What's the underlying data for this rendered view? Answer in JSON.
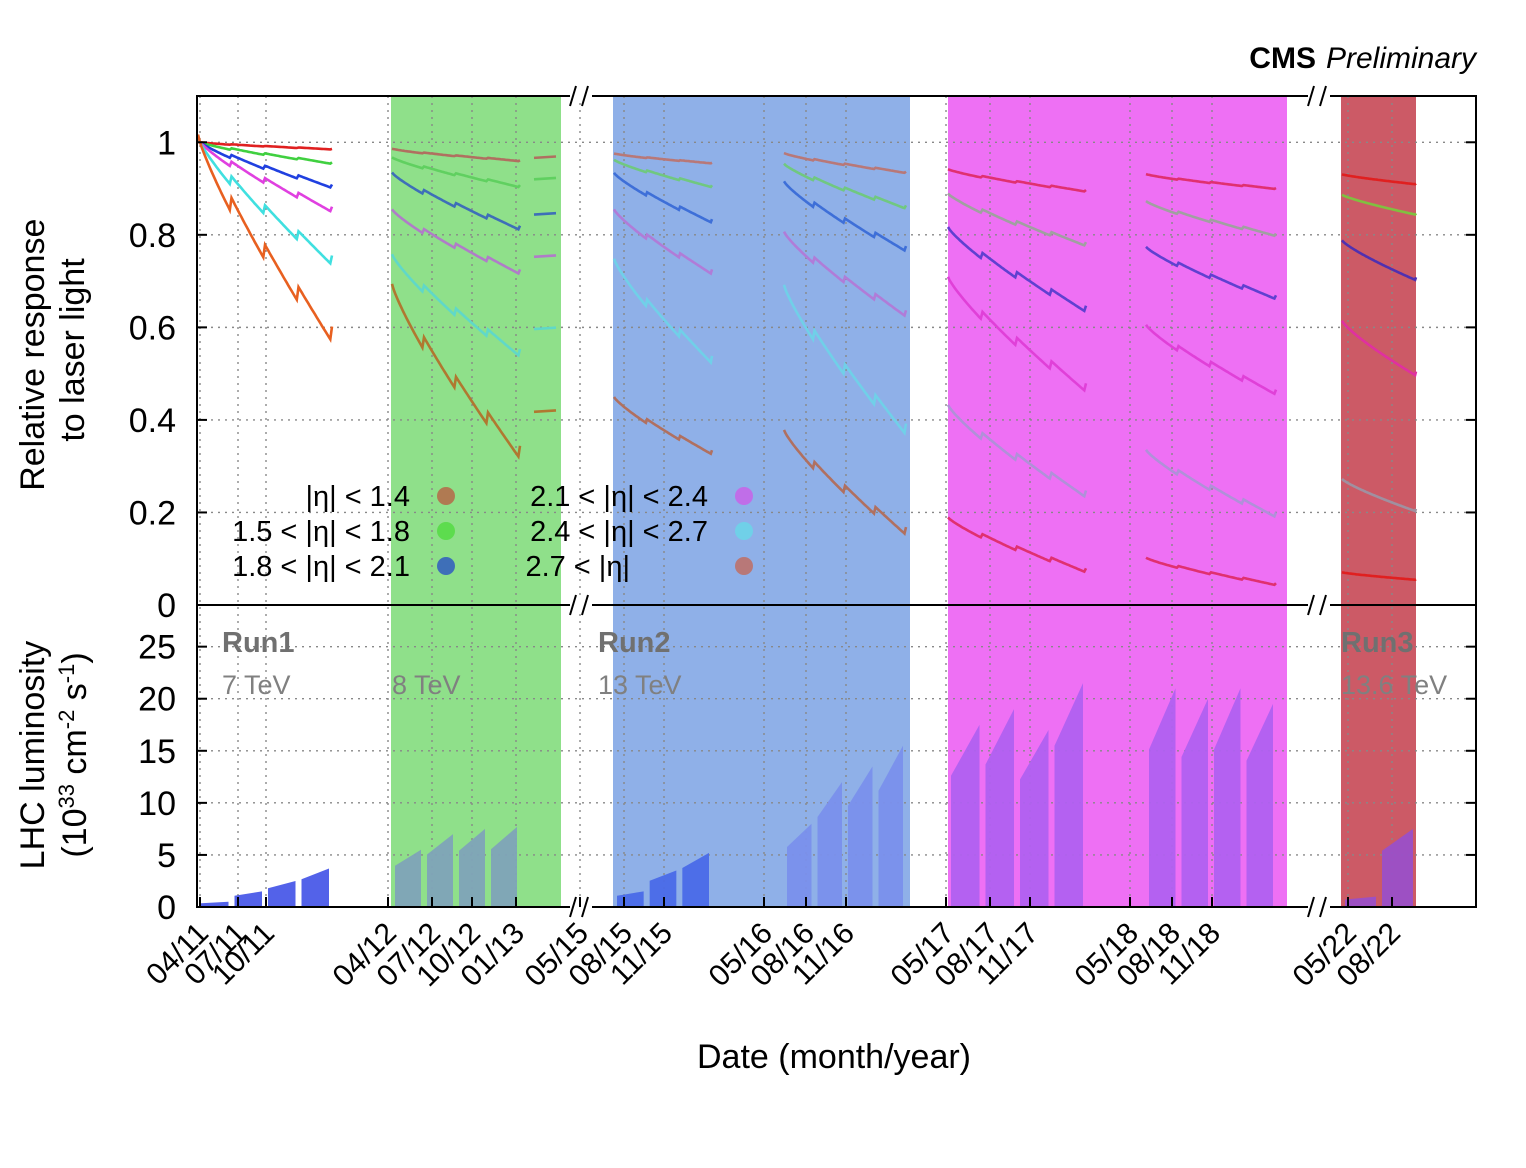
{
  "brand": {
    "experiment": "CMS",
    "status": "Preliminary"
  },
  "chart_data": [
    {
      "type": "line",
      "panel": "top",
      "ylabel": [
        "Relative response",
        "to laser light"
      ],
      "ylim": [
        0,
        1.1
      ],
      "yticks": [
        "0",
        "0.2",
        "0.4",
        "0.6",
        "0.8",
        "1"
      ],
      "ytick_values": [
        0,
        0.2,
        0.4,
        0.6,
        0.8,
        1.0
      ],
      "grid": true,
      "legend_placement": "bottom-left",
      "legend": [
        {
          "label": "|η| < 1.4",
          "color": "#b07a52"
        },
        {
          "label": "1.5 < |η| < 1.8",
          "color": "#5ddc4e"
        },
        {
          "label": "1.8 < |η| < 2.1",
          "color": "#3e6fb8"
        },
        {
          "label": "2.1 < |η| < 2.4",
          "color": "#c06ee8"
        },
        {
          "label": "2.4 < |η| < 2.7",
          "color": "#70d0e8"
        },
        {
          "label": "2.7 < |η|",
          "color": "#b87878"
        }
      ],
      "series_by_period": [
        {
          "period": "2011",
          "colors": [
            "#e02020",
            "#40d040",
            "#2040e0",
            "#e040e0",
            "#40e0e0",
            "#e86020"
          ],
          "start": [
            1.0,
            1.0,
            1.0,
            1.0,
            1.0,
            1.0
          ],
          "end": [
            0.985,
            0.955,
            0.905,
            0.855,
            0.745,
            0.585
          ]
        },
        {
          "period": "2012",
          "colors": [
            "#b07060",
            "#60d060",
            "#3e6fb8",
            "#b07cc8",
            "#60d8c8",
            "#b07830"
          ],
          "start": [
            0.985,
            0.965,
            0.93,
            0.85,
            0.75,
            0.68
          ],
          "end": [
            0.96,
            0.905,
            0.815,
            0.72,
            0.545,
            0.33
          ]
        },
        {
          "period": "2015",
          "colors": [
            "#b87878",
            "#70c880",
            "#3e6fd8",
            "#b07cd8",
            "#70d0e8",
            "#b07060"
          ],
          "start": [
            0.975,
            0.96,
            0.93,
            0.85,
            0.74,
            0.445
          ],
          "end": [
            0.955,
            0.905,
            0.83,
            0.72,
            0.53,
            0.33
          ]
        },
        {
          "period": "2016",
          "colors": [
            "#b87878",
            "#70c880",
            "#3e6fd8",
            "#b07cd8",
            "#70d0e8",
            "#b07060"
          ],
          "start": [
            0.975,
            0.95,
            0.91,
            0.8,
            0.68,
            0.37
          ],
          "end": [
            0.935,
            0.86,
            0.77,
            0.63,
            0.38,
            0.16
          ]
        },
        {
          "period": "2017",
          "colors": [
            "#e03070",
            "#a0a0a0",
            "#6040d0",
            "#e040d8",
            "#b090d8",
            "#e03070"
          ],
          "start": [
            0.94,
            0.885,
            0.81,
            0.7,
            0.425,
            0.185
          ],
          "end": [
            0.895,
            0.78,
            0.64,
            0.47,
            0.24,
            0.075
          ]
        },
        {
          "period": "2018",
          "colors": [
            "#e03070",
            "#a0a0a0",
            "#6040d0",
            "#e040d8",
            "#b090d8",
            "#e03070"
          ],
          "start": [
            0.93,
            0.87,
            0.77,
            0.6,
            0.33,
            0.1
          ],
          "end": [
            0.9,
            0.8,
            0.665,
            0.46,
            0.195,
            0.045
          ]
        },
        {
          "period": "2022",
          "colors": [
            "#e02020",
            "#80c040",
            "#5030b0",
            "#e030a0",
            "#a090a0",
            "#e02020"
          ],
          "start": [
            0.93,
            0.885,
            0.785,
            0.61,
            0.27,
            0.07
          ],
          "end": [
            0.91,
            0.845,
            0.705,
            0.5,
            0.205,
            0.055
          ]
        }
      ]
    },
    {
      "type": "area",
      "panel": "bottom",
      "ylabel": [
        "LHC luminosity",
        "(10",
        "33",
        " cm",
        "-2",
        " s",
        "-1",
        ")"
      ],
      "ylim": [
        0,
        29
      ],
      "yticks": [
        "0",
        "5",
        "10",
        "15",
        "20",
        "25"
      ],
      "ytick_values": [
        0,
        5,
        10,
        15,
        20,
        25
      ],
      "grid": true,
      "xlabel": "Date (month/year)",
      "x_ticks": [
        "04/11",
        "07/11",
        "10/11",
        "04/12",
        "07/12",
        "10/12",
        "01/13",
        "05/15",
        "08/15",
        "11/15",
        "05/16",
        "08/16",
        "11/16",
        "05/17",
        "08/17",
        "11/17",
        "05/18",
        "08/18",
        "11/18",
        "05/22",
        "08/22"
      ],
      "peak_luminosity": [
        {
          "period": "2011",
          "values": [
            0.5,
            1.5,
            2.5,
            3.7
          ],
          "color": "#4a5ae8"
        },
        {
          "period": "2012",
          "values": [
            5.5,
            7.0,
            7.5,
            7.7
          ],
          "color": "#7fa3b8"
        },
        {
          "period": "2015",
          "values": [
            1.5,
            3.5,
            5.2
          ],
          "color": "#4a6ae8"
        },
        {
          "period": "2016",
          "values": [
            8.0,
            12.0,
            13.5,
            15.5
          ],
          "color": "#7a90ec"
        },
        {
          "period": "2017",
          "values": [
            17.5,
            19.0,
            17.0,
            21.5
          ],
          "color": "#b060f0"
        },
        {
          "period": "2018",
          "values": [
            21.0,
            20.0,
            21.0,
            19.5
          ],
          "color": "#b060f0"
        },
        {
          "period": "2022",
          "values": [
            1.0,
            7.5
          ],
          "color": "#9a50c8"
        }
      ]
    }
  ],
  "runs": [
    {
      "name": "Run1",
      "energy": "7 TeV"
    },
    {
      "name": "",
      "energy": "8 TeV"
    },
    {
      "name": "Run2",
      "energy": "13 TeV"
    },
    {
      "name": "Run3",
      "energy": "13.6 TeV"
    }
  ],
  "bands": [
    {
      "period": "2012",
      "color": "#8fe08a"
    },
    {
      "period": "2015-2016",
      "color": "#8fb0e8"
    },
    {
      "period": "2017-2018",
      "color": "#ee70f4"
    },
    {
      "period": "2022",
      "color": "#cc5a66"
    }
  ]
}
